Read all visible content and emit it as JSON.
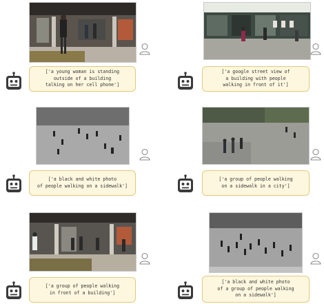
{
  "cards": [
    {
      "caption": "['a young woman is standing\noutside of a building\ntalking on her cell phone']",
      "photo": "color-building-woman"
    },
    {
      "caption": "['a google street view of\na building with people\nwalking in front of it']",
      "photo": "color-storefront"
    },
    {
      "caption": "['a black and white photo\nof people walking on a sidewalk']",
      "photo": "grayscale-plaza"
    },
    {
      "caption": "['a group of people walking\non a sidewalk in a city']",
      "photo": "color-overhead-plaza"
    },
    {
      "caption": "['a group of people walking\nin front of a building']",
      "photo": "color-building-people"
    },
    {
      "caption": "['a black and white photo\nof a group of people walking\non a sidewalk']",
      "photo": "grayscale-crowd"
    }
  ],
  "icons": {
    "user": "user-icon",
    "bot": "robot-icon"
  },
  "colors": {
    "caption_bg": "#fdf7df",
    "caption_border": "#e3c97a",
    "icon_dark": "#3a3a3a"
  }
}
